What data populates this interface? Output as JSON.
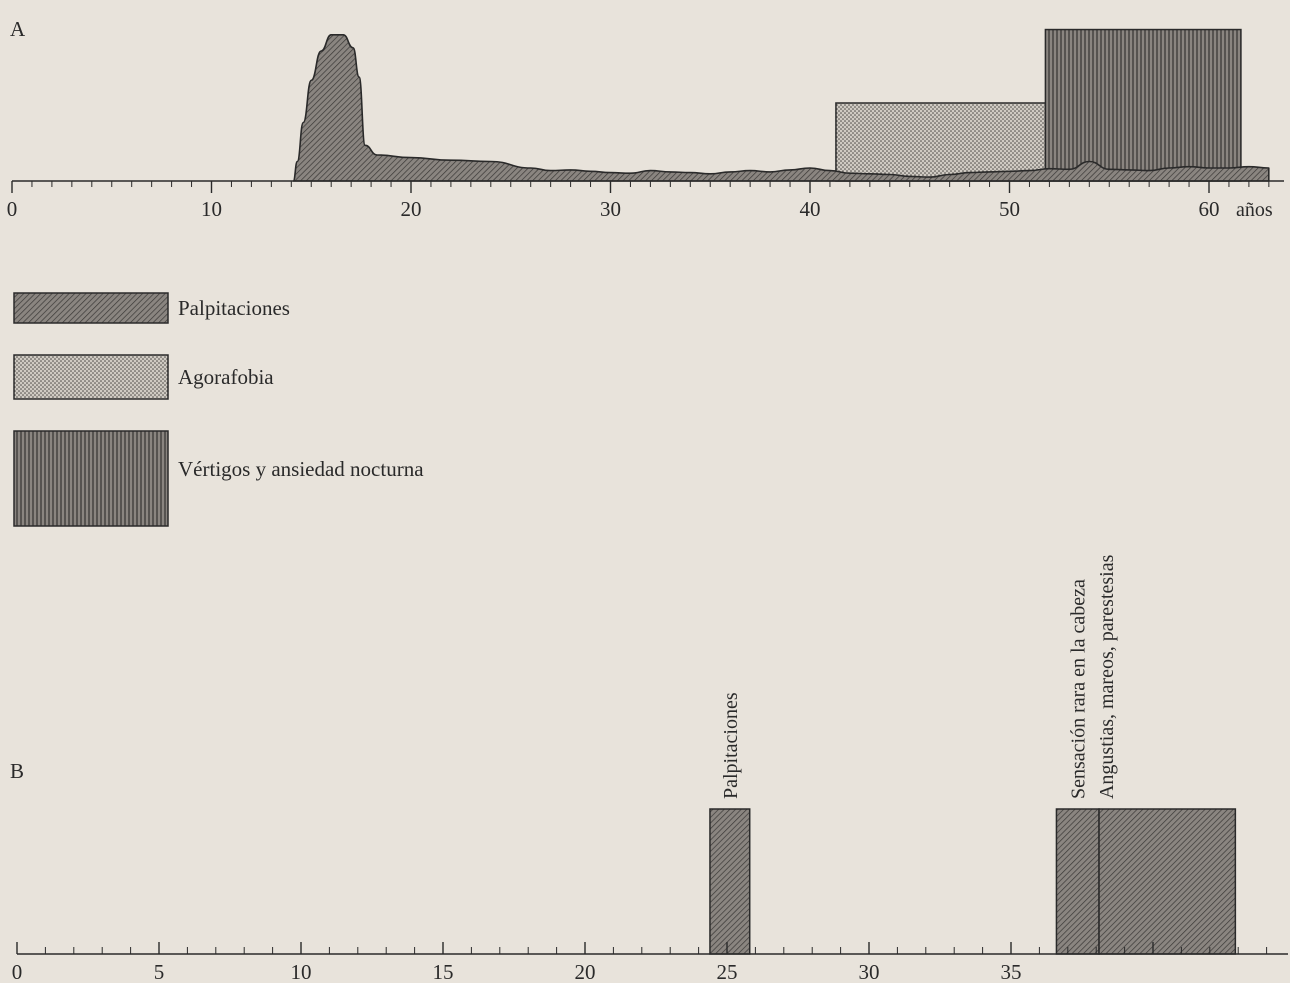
{
  "chart_data": [
    {
      "panel": "A",
      "type": "area",
      "x_unit_label": "años",
      "x_ticks": [
        0,
        10,
        20,
        30,
        40,
        50,
        60
      ],
      "xlim": [
        0,
        63
      ],
      "y_axis_shown": false,
      "series": [
        {
          "name": "Palpitaciones",
          "pattern": "diagonal-hatch",
          "points": [
            [
              14.1,
              0
            ],
            [
              14.3,
              0.3
            ],
            [
              14.6,
              0.9
            ],
            [
              15.0,
              1.55
            ],
            [
              15.5,
              2.0
            ],
            [
              16.0,
              2.25
            ],
            [
              16.6,
              2.25
            ],
            [
              17.1,
              2.05
            ],
            [
              17.4,
              1.6
            ],
            [
              17.7,
              0.55
            ],
            [
              18.3,
              0.4
            ],
            [
              20,
              0.36
            ],
            [
              22,
              0.32
            ],
            [
              24,
              0.3
            ],
            [
              26,
              0.2
            ],
            [
              27,
              0.16
            ],
            [
              28,
              0.17
            ],
            [
              29,
              0.15
            ],
            [
              30,
              0.13
            ],
            [
              31,
              0.12
            ],
            [
              32,
              0.16
            ],
            [
              33,
              0.14
            ],
            [
              34,
              0.13
            ],
            [
              35,
              0.11
            ],
            [
              36,
              0.14
            ],
            [
              37,
              0.16
            ],
            [
              38,
              0.14
            ],
            [
              39,
              0.17
            ],
            [
              40,
              0.2
            ],
            [
              41,
              0.16
            ],
            [
              42,
              0.12
            ],
            [
              43,
              0.11
            ],
            [
              44,
              0.1
            ],
            [
              45,
              0.07
            ],
            [
              46,
              0.06
            ],
            [
              47,
              0.1
            ],
            [
              48,
              0.13
            ],
            [
              49,
              0.14
            ],
            [
              50,
              0.15
            ],
            [
              51,
              0.16
            ],
            [
              52,
              0.19
            ],
            [
              53,
              0.18
            ],
            [
              54,
              0.3
            ],
            [
              55,
              0.18
            ],
            [
              56,
              0.17
            ],
            [
              57,
              0.16
            ],
            [
              58,
              0.2
            ],
            [
              59,
              0.22
            ],
            [
              60,
              0.2
            ],
            [
              61,
              0.2
            ],
            [
              62,
              0.22
            ],
            [
              63,
              0.2
            ],
            [
              63,
              0
            ]
          ]
        },
        {
          "name": "Agorafobia",
          "pattern": "stipple",
          "x_range": [
            41.3,
            51.8
          ],
          "level": 1.2
        },
        {
          "name": "Vértigos y ansiedad nocturna",
          "pattern": "vertical-hatch",
          "x_range": [
            51.8,
            61.6
          ],
          "level": 2.33
        }
      ],
      "legend": [
        {
          "label": "Palpitaciones",
          "pattern": "diagonal-hatch"
        },
        {
          "label": "Agorafobia",
          "pattern": "stipple"
        },
        {
          "label": "Vértigos y ansiedad nocturna",
          "pattern": "vertical-hatch"
        }
      ]
    },
    {
      "panel": "B",
      "type": "bar",
      "x_ticks": [
        0,
        5,
        10,
        15,
        20,
        25,
        30,
        35
      ],
      "xlim": [
        0,
        44.5
      ],
      "y_axis_shown": false,
      "bars": [
        {
          "label": "Palpitaciones",
          "x_range": [
            24.4,
            25.8
          ],
          "level": 1
        },
        {
          "label": "Sensación rara en la cabeza",
          "x_range": [
            36.6,
            38.1
          ],
          "level": 1
        },
        {
          "label": "Angustias, mareos, parestesias",
          "x_range": [
            38.1,
            42.9
          ],
          "level": 1
        }
      ]
    }
  ],
  "colors": {
    "background": "#e8e3db",
    "ink": "#2a2a2a",
    "fill": "#8a8580",
    "stipple_fill": "#c9c4bc"
  }
}
